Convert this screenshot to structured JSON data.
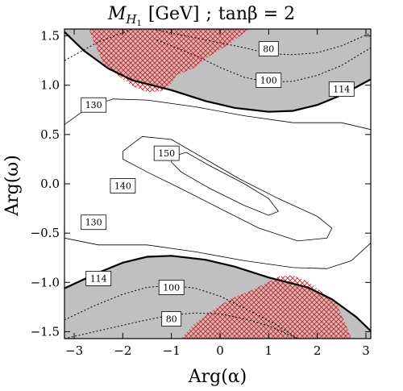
{
  "chart_data": {
    "type": "contour",
    "title": "M_{H1} [GeV] ; tanβ = 2",
    "title_parts": {
      "mass_symbol": "M",
      "mass_sub": "H",
      "mass_subsub": "1",
      "unit": "[GeV]",
      "separator": ";",
      "tan_label": "tanβ = 2"
    },
    "xlabel": "Arg(α)",
    "ylabel": "Arg(ω)",
    "xlim": [
      -3.2,
      3.1
    ],
    "ylim": [
      -1.57,
      1.57
    ],
    "xticks": [
      -3,
      -2,
      -1,
      0,
      1,
      2,
      3
    ],
    "xtick_labels": [
      "−3",
      "−2",
      "−1",
      "0",
      "1",
      "2",
      "3"
    ],
    "yticks": [
      -1.5,
      -1.0,
      -0.5,
      0.0,
      0.5,
      1.0,
      1.5
    ],
    "ytick_labels": [
      "−1.5",
      "−1.0",
      "−0.5",
      "0.0",
      "0.5",
      "1.0",
      "1.5"
    ],
    "excluded_region_color": "#c0c0c0",
    "hatch_color": "#e31a1c",
    "contours": [
      {
        "level": 80,
        "style": "dotted",
        "label": "80",
        "points": [
          [
            -3.2,
            1.25
          ],
          [
            -2.5,
            1.44
          ],
          [
            -1.8,
            1.57
          ]
        ],
        "points_lower": [
          [
            -3.2,
            -1.57
          ],
          [
            -2.4,
            -1.48
          ],
          [
            -1.6,
            -1.39
          ],
          [
            -1.0,
            -1.33
          ],
          [
            -0.5,
            -1.31
          ],
          [
            0.0,
            -1.32
          ],
          [
            0.5,
            -1.37
          ],
          [
            1.0,
            -1.44
          ],
          [
            1.6,
            -1.57
          ]
        ],
        "points_upper_right": [
          [
            -1.4,
            1.57
          ],
          [
            -0.5,
            1.48
          ],
          [
            0.5,
            1.38
          ],
          [
            1.0,
            1.32
          ],
          [
            1.5,
            1.31
          ],
          [
            2.0,
            1.33
          ],
          [
            2.5,
            1.4
          ],
          [
            3.1,
            1.53
          ]
        ],
        "label_positions": [
          [
            1.0,
            1.37
          ],
          [
            -1.0,
            -1.37
          ]
        ]
      },
      {
        "level": 100,
        "style": "dotted",
        "label": "100",
        "points": [
          [
            -1.3,
            1.46
          ],
          [
            -0.5,
            1.3
          ],
          [
            0.0,
            1.18
          ],
          [
            0.5,
            1.08
          ],
          [
            1.0,
            1.03
          ],
          [
            1.5,
            1.04
          ],
          [
            2.0,
            1.1
          ],
          [
            2.5,
            1.2
          ],
          [
            3.1,
            1.38
          ]
        ],
        "points_lower": [
          [
            -3.2,
            -1.38
          ],
          [
            -2.6,
            -1.24
          ],
          [
            -2.0,
            -1.12
          ],
          [
            -1.5,
            -1.05
          ],
          [
            -1.0,
            -1.03
          ],
          [
            -0.5,
            -1.06
          ],
          [
            0.0,
            -1.14
          ],
          [
            0.5,
            -1.26
          ],
          [
            1.2,
            -1.44
          ],
          [
            1.6,
            -1.57
          ]
        ],
        "label_positions": [
          [
            1.0,
            1.05
          ],
          [
            -1.0,
            -1.05
          ]
        ]
      },
      {
        "level": 114,
        "style": "thick",
        "label": "114",
        "points": [
          [
            -3.2,
            1.54
          ],
          [
            -2.8,
            1.35
          ],
          [
            -2.3,
            1.17
          ],
          [
            -1.8,
            1.05
          ],
          [
            -1.0,
            0.95
          ],
          [
            -0.3,
            0.84
          ],
          [
            0.3,
            0.77
          ],
          [
            1.0,
            0.73
          ],
          [
            1.5,
            0.74
          ],
          [
            2.0,
            0.8
          ],
          [
            2.5,
            0.9
          ],
          [
            3.1,
            1.06
          ]
        ],
        "points_lower": [
          [
            -3.2,
            -1.06
          ],
          [
            -2.5,
            -0.9
          ],
          [
            -2.0,
            -0.8
          ],
          [
            -1.5,
            -0.74
          ],
          [
            -1.0,
            -0.73
          ],
          [
            -0.3,
            -0.77
          ],
          [
            0.3,
            -0.84
          ],
          [
            1.0,
            -0.95
          ],
          [
            1.8,
            -1.05
          ],
          [
            2.3,
            -1.17
          ],
          [
            2.8,
            -1.35
          ],
          [
            3.2,
            -1.54
          ]
        ],
        "label_positions": [
          [
            2.5,
            0.96
          ],
          [
            -2.5,
            -0.96
          ]
        ]
      },
      {
        "level": 130,
        "style": "thin",
        "label": "130",
        "points": [
          [
            -3.2,
            0.6
          ],
          [
            -2.7,
            0.78
          ],
          [
            -2.2,
            0.86
          ],
          [
            -1.5,
            0.85
          ],
          [
            -0.5,
            0.78
          ],
          [
            0.5,
            0.69
          ],
          [
            1.5,
            0.62
          ],
          [
            2.5,
            0.62
          ],
          [
            3.1,
            0.55
          ]
        ],
        "points_lower": [
          [
            -3.2,
            -0.55
          ],
          [
            -2.5,
            -0.62
          ],
          [
            -1.5,
            -0.62
          ],
          [
            -0.5,
            -0.69
          ],
          [
            0.5,
            -0.78
          ],
          [
            1.5,
            -0.85
          ],
          [
            2.2,
            -0.86
          ],
          [
            2.7,
            -0.78
          ],
          [
            3.1,
            -0.6
          ]
        ],
        "label_positions": [
          [
            -2.6,
            0.8
          ],
          [
            -2.6,
            -0.39
          ]
        ]
      },
      {
        "level": 140,
        "style": "thin",
        "label": "140",
        "closed": true,
        "points": [
          [
            -2.0,
            0.33
          ],
          [
            -1.6,
            0.48
          ],
          [
            -1.0,
            0.45
          ],
          [
            -0.3,
            0.25
          ],
          [
            0.4,
            0.05
          ],
          [
            1.2,
            -0.15
          ],
          [
            2.0,
            -0.33
          ],
          [
            2.3,
            -0.45
          ],
          [
            2.2,
            -0.55
          ],
          [
            1.6,
            -0.58
          ],
          [
            0.8,
            -0.45
          ],
          [
            0.0,
            -0.25
          ],
          [
            -0.8,
            -0.05
          ],
          [
            -1.5,
            0.12
          ],
          [
            -2.0,
            0.25
          ],
          [
            -2.0,
            0.33
          ]
        ],
        "label_positions": [
          [
            -2.0,
            -0.02
          ]
        ]
      },
      {
        "level": 150,
        "style": "thin",
        "label": "150",
        "closed": true,
        "points": [
          [
            -1.0,
            0.27
          ],
          [
            -0.7,
            0.32
          ],
          [
            -0.2,
            0.18
          ],
          [
            0.5,
            0.0
          ],
          [
            1.0,
            -0.15
          ],
          [
            1.2,
            -0.28
          ],
          [
            1.0,
            -0.32
          ],
          [
            0.5,
            -0.22
          ],
          [
            -0.2,
            -0.05
          ],
          [
            -0.8,
            0.12
          ],
          [
            -1.0,
            0.22
          ],
          [
            -1.0,
            0.27
          ]
        ],
        "label_positions": [
          [
            -1.1,
            0.31
          ]
        ]
      }
    ],
    "excluded_regions": [
      {
        "name": "upper",
        "boundary_level": 114,
        "side": "above"
      },
      {
        "name": "lower",
        "boundary_level": 114,
        "side": "below"
      }
    ],
    "hatched_regions": [
      {
        "name": "upper-left",
        "points": [
          [
            -2.7,
            1.57
          ],
          [
            -2.6,
            1.44
          ],
          [
            -2.4,
            1.22
          ],
          [
            -2.1,
            1.1
          ],
          [
            -1.8,
            0.99
          ],
          [
            -1.5,
            0.93
          ],
          [
            -1.2,
            0.94
          ],
          [
            -1.0,
            1.02
          ],
          [
            -0.9,
            1.1
          ],
          [
            -0.55,
            1.17
          ],
          [
            -0.2,
            1.3
          ],
          [
            0.2,
            1.42
          ],
          [
            0.6,
            1.57
          ]
        ]
      },
      {
        "name": "lower-right",
        "points": [
          [
            -0.8,
            -1.57
          ],
          [
            -0.55,
            -1.43
          ],
          [
            -0.2,
            -1.3
          ],
          [
            0.2,
            -1.17
          ],
          [
            0.55,
            -1.1
          ],
          [
            0.9,
            -1.02
          ],
          [
            1.2,
            -0.94
          ],
          [
            1.5,
            -0.93
          ],
          [
            1.8,
            -0.99
          ],
          [
            2.1,
            -1.1
          ],
          [
            2.4,
            -1.22
          ],
          [
            2.6,
            -1.44
          ],
          [
            2.7,
            -1.57
          ]
        ]
      }
    ]
  }
}
